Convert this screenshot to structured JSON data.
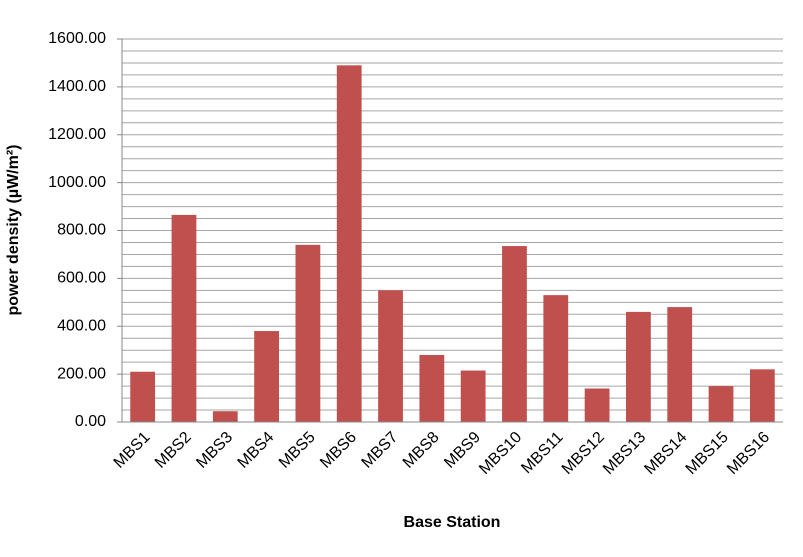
{
  "chart_data": {
    "type": "bar",
    "x_label": "Base Station",
    "y_label": "power density (µW/m²)",
    "categories": [
      "MBS1",
      "MBS2",
      "MBS3",
      "MBS4",
      "MBS5",
      "MBS6",
      "MBS7",
      "MBS8",
      "MBS9",
      "MBS10",
      "MBS11",
      "MBS12",
      "MBS13",
      "MBS14",
      "MBS15",
      "MBS16"
    ],
    "values": [
      210,
      865,
      45,
      380,
      740,
      1490,
      550,
      280,
      215,
      735,
      530,
      140,
      460,
      480,
      150,
      220
    ],
    "color": "#c0504d",
    "ylim": [
      0,
      1600
    ],
    "yticks": [
      {
        "value": 0,
        "label": "0.00"
      },
      {
        "value": 200,
        "label": "200.00"
      },
      {
        "value": 400,
        "label": "400.00"
      },
      {
        "value": 600,
        "label": "600.00"
      },
      {
        "value": 800,
        "label": "800.00"
      },
      {
        "value": 1000,
        "label": "1000.00"
      },
      {
        "value": 1200,
        "label": "1200.00"
      },
      {
        "value": 1400,
        "label": "1400.00"
      },
      {
        "value": 1600,
        "label": "1600.00"
      }
    ],
    "ygrid": [
      0,
      50,
      100,
      150,
      200,
      250,
      300,
      350,
      400,
      450,
      500,
      550,
      600,
      650,
      700,
      750,
      800,
      850,
      900,
      950,
      1000,
      1050,
      1100,
      1150,
      1200,
      1250,
      1300,
      1350,
      1400,
      1450,
      1500,
      1550,
      1600
    ],
    "grid": true
  }
}
